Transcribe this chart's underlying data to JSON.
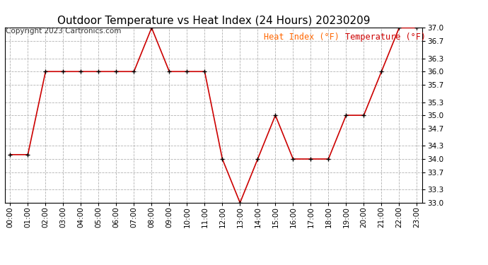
{
  "title": "Outdoor Temperature vs Heat Index (24 Hours) 20230209",
  "copyright": "Copyright 2023 Cartronics.com",
  "legend_heat": "Heat Index (°F)",
  "legend_temp": "Temperature (°F)",
  "hours": [
    "00:00",
    "01:00",
    "02:00",
    "03:00",
    "04:00",
    "05:00",
    "06:00",
    "07:00",
    "08:00",
    "09:00",
    "10:00",
    "11:00",
    "12:00",
    "13:00",
    "14:00",
    "15:00",
    "16:00",
    "17:00",
    "18:00",
    "19:00",
    "20:00",
    "21:00",
    "22:00",
    "23:00"
  ],
  "temperature": [
    34.1,
    34.1,
    36.0,
    36.0,
    36.0,
    36.0,
    36.0,
    36.0,
    37.0,
    36.0,
    36.0,
    36.0,
    34.0,
    33.0,
    34.0,
    35.0,
    34.0,
    34.0,
    34.0,
    35.0,
    35.0,
    36.0,
    37.0,
    37.0
  ],
  "heat_index": [
    34.1,
    34.1,
    36.0,
    36.0,
    36.0,
    36.0,
    36.0,
    36.0,
    37.0,
    36.0,
    36.0,
    36.0,
    34.0,
    33.0,
    34.0,
    35.0,
    34.0,
    34.0,
    34.0,
    35.0,
    35.0,
    36.0,
    37.0,
    37.0
  ],
  "line_color": "#cc0000",
  "marker_color": "#000000",
  "heat_index_legend_color": "#ff6600",
  "temp_legend_color": "#cc0000",
  "ylim_min": 33.0,
  "ylim_max": 37.0,
  "yticks": [
    33.0,
    33.3,
    33.7,
    34.0,
    34.3,
    34.7,
    35.0,
    35.3,
    35.7,
    36.0,
    36.3,
    36.7,
    37.0
  ],
  "background_color": "#ffffff",
  "grid_color": "#aaaaaa",
  "title_fontsize": 11,
  "copyright_fontsize": 7.5,
  "legend_fontsize": 8.5,
  "axis_fontsize": 7.5
}
